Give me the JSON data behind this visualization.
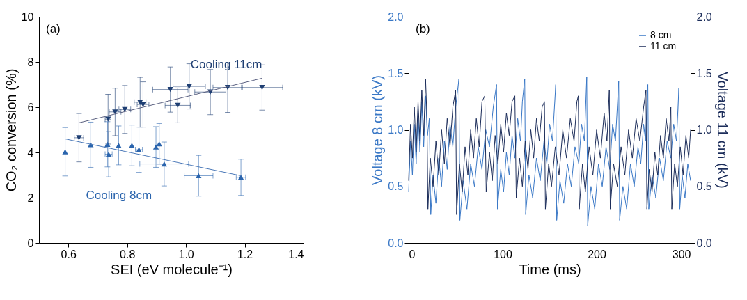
{
  "chart_data": [
    {
      "type": "scatter",
      "xlabel": "SEI (eV molecule⁻¹)",
      "ylabel": "CO₂ conversion (%)",
      "annotations": [
        "(a)"
      ],
      "xlim": [
        0.5,
        1.4
      ],
      "xticks": [
        0.6,
        0.8,
        {
          "value": 1,
          "label": "1.0"
        },
        1.2,
        1.4
      ],
      "ylim": [
        0,
        10
      ],
      "yticks": [
        0,
        2,
        4,
        6,
        8,
        10
      ],
      "grid": false,
      "legend": false,
      "marker": "triangle",
      "series": [
        {
          "name": "Cooling 11cm",
          "color": "#1f3f73",
          "x": [
            0.636,
            0.735,
            0.759,
            0.792,
            0.844,
            0.854,
            0.947,
            0.972,
            1.011,
            1.083,
            1.142,
            1.259
          ],
          "values": [
            4.65,
            5.47,
            5.79,
            5.9,
            6.22,
            6.12,
            6.78,
            6.08,
            6.92,
            6.67,
            6.87,
            6.87
          ],
          "errors": [
            1.07,
            1.1,
            1.05,
            1.06,
            1.1,
            1.0,
            1.0,
            0.77,
            1.0,
            1.0,
            1.1,
            1.0
          ],
          "xerrors": [
            0.016,
            0.01,
            0.02,
            0.02,
            0.02,
            0.02,
            0.06,
            0.043,
            0.055,
            0.053,
            0.05,
            0.07
          ]
        },
        {
          "name": "Cooling 8cm",
          "color": "#2a64ad",
          "x": [
            0.589,
            0.676,
            0.733,
            0.737,
            0.771,
            0.816,
            0.84,
            0.898,
            0.909,
            0.926,
            1.043,
            1.187
          ],
          "values": [
            4.03,
            4.34,
            4.36,
            3.92,
            4.31,
            4.31,
            4.12,
            4.24,
            4.38,
            3.49,
            2.97,
            2.9
          ],
          "errors": [
            1.07,
            1.0,
            1.0,
            1.0,
            0.86,
            0.9,
            1.0,
            0.9,
            0.9,
            0.97,
            0.9,
            0.8
          ],
          "xerrors": [
            null,
            null,
            null,
            0.012,
            null,
            null,
            0.012,
            null,
            null,
            0.083,
            0.049,
            0.016
          ]
        },
        {
          "type": "line",
          "marker": "none",
          "color": "#5a6080",
          "x": [
            0.636,
            1.259
          ],
          "values": [
            5.31,
            7.28
          ]
        },
        {
          "type": "line",
          "marker": "none",
          "color": "#4a78b8",
          "x": [
            0.589,
            1.187
          ],
          "values": [
            4.6,
            2.97
          ]
        }
      ]
    },
    {
      "type": "line",
      "xlabel": "Time (ms)",
      "ylabel": "Voltage 8 cm (kV)",
      "y2label": "Voltage 11 cm (kV)",
      "annotations": [
        "(b)"
      ],
      "xlim": [
        0,
        300
      ],
      "xticks": [
        0,
        100,
        200,
        300
      ],
      "ylim": [
        0,
        2
      ],
      "yticks": [
        {
          "value": 0,
          "label": "0.0"
        },
        0.5,
        {
          "value": 1,
          "label": "1.0"
        },
        1.5,
        {
          "value": 2,
          "label": "2.0"
        }
      ],
      "y2lim": [
        0,
        2
      ],
      "y2ticks": [
        {
          "value": 0,
          "label": "0.0"
        },
        0.5,
        {
          "value": 1,
          "label": "1.0"
        },
        1.5,
        {
          "value": 2,
          "label": "2.0"
        }
      ],
      "grid": false,
      "legend": "top right",
      "line_style": "solid",
      "marker": "none",
      "series": [
        {
          "name": "8 cm",
          "color": "#3a78c6",
          "x": [
            0,
            2,
            4,
            6,
            8,
            10,
            12,
            14,
            16,
            18,
            20,
            22,
            23.5,
            26,
            29,
            32,
            35,
            38,
            41,
            44,
            47,
            50,
            53.5,
            54.5,
            58,
            62,
            66,
            70,
            74,
            78,
            82,
            86,
            90,
            93.5,
            94.5,
            98,
            101,
            104,
            107,
            110,
            113,
            116,
            119,
            121,
            123.5,
            124.5,
            128,
            132,
            136,
            140,
            144,
            147,
            150,
            153,
            156.5,
            157.5,
            161,
            165,
            169,
            173,
            177,
            181,
            184,
            187,
            189.5,
            190.5,
            194,
            198,
            202,
            206,
            210,
            214,
            217,
            220,
            223.5,
            224.5,
            228,
            232,
            236,
            240,
            244,
            247,
            250,
            252,
            254.5,
            255.5,
            259,
            263,
            267,
            271,
            275,
            279,
            282,
            285,
            287.5,
            288.5,
            291,
            294,
            297,
            300
          ],
          "values": [
            0.45,
            0.9,
            0.6,
            1.05,
            0.7,
            1.15,
            0.8,
            1.25,
            0.85,
            1.3,
            0.95,
            1.1,
            0.25,
            0.6,
            0.35,
            0.75,
            0.5,
            0.9,
            0.65,
            1.05,
            0.85,
            1.2,
            1.45,
            0.2,
            0.55,
            0.3,
            0.7,
            0.5,
            0.85,
            0.65,
            1.0,
            0.85,
            1.2,
            1.4,
            0.3,
            0.65,
            0.45,
            0.8,
            0.6,
            0.95,
            0.75,
            1.1,
            0.9,
            1.25,
            1.45,
            0.25,
            0.6,
            0.4,
            0.75,
            0.55,
            0.9,
            0.7,
            1.05,
            0.9,
            1.4,
            0.2,
            0.55,
            0.35,
            0.7,
            0.5,
            0.85,
            0.7,
            1.05,
            0.9,
            1.47,
            0.15,
            0.5,
            0.3,
            0.7,
            0.5,
            0.85,
            0.65,
            1.05,
            0.9,
            1.43,
            0.2,
            0.5,
            0.3,
            0.7,
            0.5,
            0.85,
            0.7,
            1.05,
            0.9,
            1.4,
            0.3,
            0.6,
            0.4,
            0.75,
            0.55,
            0.9,
            0.75,
            1.05,
            0.9,
            1.37,
            0.3,
            0.6,
            0.4,
            0.7,
            0.55
          ]
        },
        {
          "name": "11 cm",
          "axis": "y2",
          "color": "#1c2d5a",
          "x": [
            0,
            2,
            4,
            6,
            8,
            10,
            12,
            14,
            16,
            18,
            19.5,
            20.5,
            23,
            26,
            29,
            32,
            35,
            38,
            41,
            44,
            47,
            50,
            51,
            54,
            57,
            60,
            63,
            66,
            69,
            72,
            75,
            78,
            81,
            82.5,
            86,
            89,
            92,
            95,
            98,
            101,
            104,
            107,
            110,
            113,
            114.5,
            118,
            121,
            124,
            127,
            130,
            133,
            136,
            139,
            142,
            144.5,
            145.5,
            149,
            152,
            156,
            160,
            164,
            168,
            172,
            176,
            179,
            180.5,
            181.5,
            185,
            188,
            192,
            196,
            200,
            204,
            208,
            211,
            213.5,
            214.5,
            218,
            222,
            226,
            230,
            234,
            238,
            242,
            246,
            250,
            252.5,
            253.5,
            256,
            259,
            262,
            265,
            268,
            271,
            274,
            277,
            279,
            280,
            283,
            286,
            289,
            292,
            295,
            298,
            300
          ],
          "values": [
            0.55,
            1.05,
            0.75,
            1.2,
            0.8,
            1.25,
            0.9,
            1.35,
            0.95,
            1.45,
            1.1,
            0.3,
            0.75,
            0.5,
            0.9,
            0.6,
            1.0,
            0.7,
            1.1,
            0.85,
            1.2,
            1.35,
            0.25,
            0.7,
            0.45,
            0.85,
            0.6,
            1.0,
            0.75,
            1.1,
            0.85,
            1.25,
            1.3,
            0.45,
            0.8,
            0.55,
            0.95,
            0.7,
            1.05,
            0.8,
            1.15,
            0.95,
            1.25,
            1.3,
            0.4,
            0.75,
            0.5,
            0.9,
            0.65,
            1.0,
            0.75,
            1.1,
            0.9,
            1.2,
            1.25,
            0.3,
            0.7,
            0.5,
            0.85,
            0.6,
            1.0,
            0.75,
            1.1,
            0.9,
            1.25,
            1.3,
            0.3,
            0.7,
            0.45,
            0.85,
            0.6,
            1.0,
            0.75,
            1.15,
            0.9,
            1.35,
            0.3,
            0.7,
            0.5,
            0.85,
            0.6,
            1.0,
            0.75,
            1.1,
            0.9,
            1.2,
            1.35,
            0.3,
            0.65,
            0.45,
            0.8,
            0.6,
            0.95,
            0.75,
            1.1,
            0.9,
            1.2,
            0.3,
            0.7,
            0.5,
            0.85,
            0.6,
            0.95,
            0.75,
            1.0
          ]
        }
      ]
    }
  ]
}
